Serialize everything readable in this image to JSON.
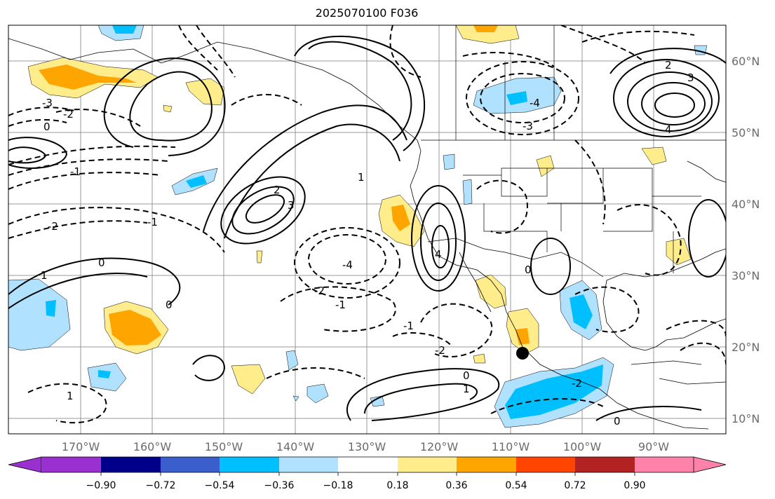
{
  "title": "2025070100 F036",
  "map": {
    "lon_ticks": [
      "170°W",
      "160°W",
      "150°W",
      "140°W",
      "130°W",
      "120°W",
      "110°W",
      "100°W",
      "90°W"
    ],
    "lat_ticks": [
      "60°N",
      "50°N",
      "40°N",
      "30°N",
      "20°N",
      "10°N"
    ],
    "marker": "black-dot"
  },
  "colorbar": {
    "colors": [
      "#9b30d0",
      "#00008b",
      "#3a5fcd",
      "#00bfff",
      "#b0e2ff",
      "#ffffff",
      "#ffec8b",
      "#ffa500",
      "#ff4500",
      "#b22222",
      "#ff82ab"
    ],
    "tick_labels": [
      "−0.90",
      "−0.72",
      "−0.54",
      "−0.36",
      "−0.18",
      "0.18",
      "0.36",
      "0.54",
      "0.72",
      "0.90"
    ],
    "extend": "both"
  },
  "contour_labels": [
    "0",
    "1",
    "2",
    "3",
    "4",
    "-1",
    "-2",
    "-3",
    "-4"
  ]
}
